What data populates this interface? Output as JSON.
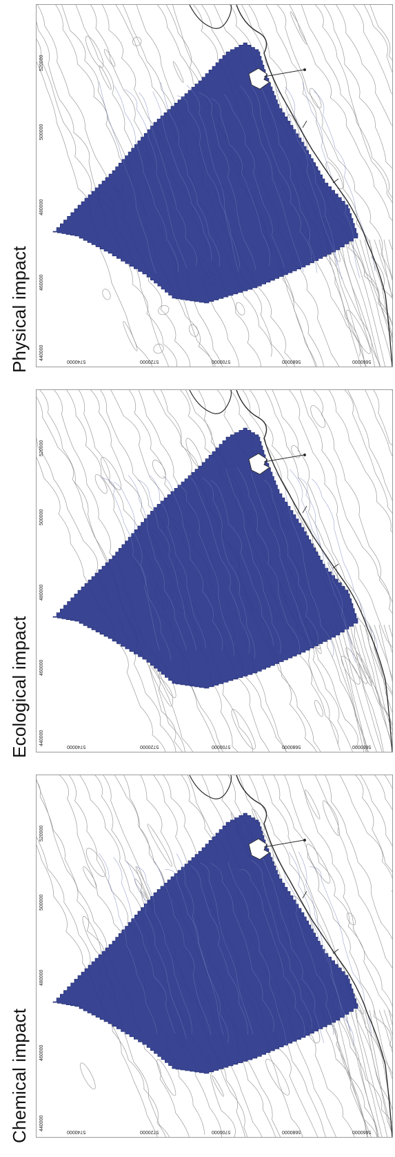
{
  "panels": [
    {
      "id": "physical",
      "title": "Physical impact",
      "left_ticks": [
        "440000",
        "460000",
        "480000",
        "500000",
        "520000"
      ],
      "bottom_ticks": [
        "5740000",
        "5720000",
        "5700000",
        "5680000",
        "5660000"
      ]
    },
    {
      "id": "ecological",
      "title": "Ecological impact",
      "left_ticks": [
        "440000",
        "460000",
        "480000",
        "500000",
        "520000"
      ],
      "bottom_ticks": [
        "5740000",
        "5720000",
        "5700000",
        "5680000",
        "5660000"
      ]
    },
    {
      "id": "chemical",
      "title": "Chemical impact",
      "left_ticks": [
        "440000",
        "460000",
        "480000",
        "500000",
        "520000"
      ],
      "bottom_ticks": [
        "5740000",
        "5720000",
        "5700000",
        "5680000",
        "5660000"
      ]
    }
  ],
  "colors": {
    "impact_zone": "#2e3a8c",
    "contour": "#9a9a9a",
    "coastline": "#2a2a2a"
  }
}
